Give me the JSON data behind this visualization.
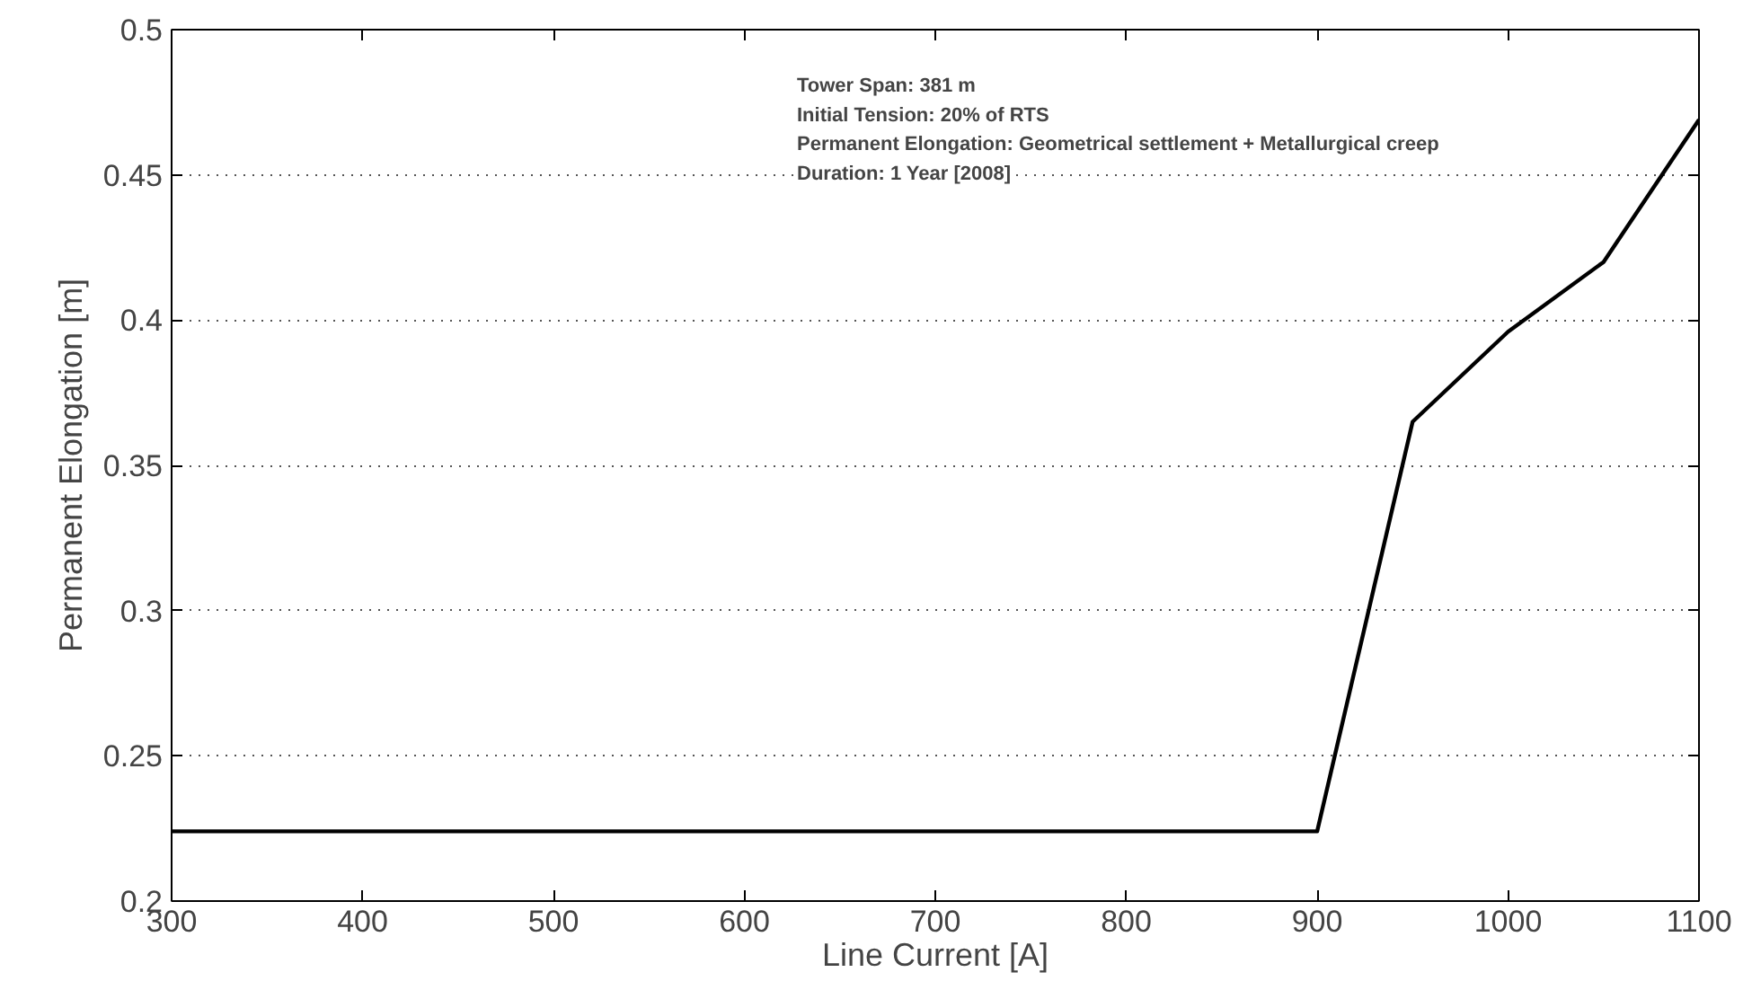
{
  "chart_data": {
    "type": "line",
    "xlabel": "Line Current [A]",
    "ylabel": "Permanent Elongation [m]",
    "x": [
      300,
      900,
      950,
      1000,
      1050,
      1100
    ],
    "series": [
      {
        "color": "#000000",
        "values": [
          0.224,
          0.224,
          0.365,
          0.396,
          0.42,
          0.469
        ]
      }
    ],
    "xlim": [
      300,
      1100
    ],
    "xticks": [
      300,
      400,
      500,
      600,
      700,
      800,
      900,
      1000,
      1100
    ],
    "ylim": [
      0.2,
      0.5
    ],
    "yticks": [
      0.2,
      0.25,
      0.3,
      0.35,
      0.4,
      0.45,
      0.5
    ],
    "grid": "y",
    "marker": "none",
    "line_style": "solid",
    "annotations": [
      "Tower Span: 381 m",
      "Initial Tension: 20% of RTS",
      "Permanent Elongation: Geometrical settlement + Metallurgical creep",
      "Duration: 1 Year [2008]"
    ]
  }
}
